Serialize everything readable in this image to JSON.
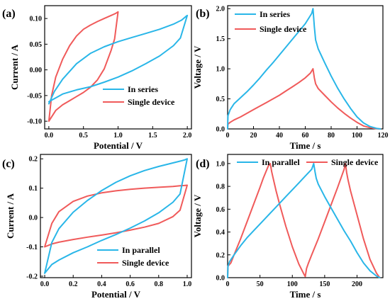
{
  "colors": {
    "series_a": "#29b6e8",
    "series_b": "#f05a5a"
  },
  "chart_data": [
    {
      "panel_label": "(a)",
      "type": "line",
      "xlabel": "Potential / V",
      "ylabel": "Current / A",
      "xlim": [
        -0.06,
        2.06
      ],
      "ylim": [
        -0.115,
        0.125
      ],
      "xticks": [
        0.0,
        0.5,
        1.0,
        1.5,
        2.0
      ],
      "xtick_labels": [
        "0.0",
        "0.5",
        "1.0",
        "1.5",
        "2.0"
      ],
      "yticks": [
        -0.1,
        -0.05,
        0.0,
        0.05,
        0.1
      ],
      "ytick_labels": [
        "-0.10",
        "-0.05",
        "0.00",
        "0.05",
        "0.10"
      ],
      "legend": "bottom-right",
      "series": [
        {
          "name": "In series",
          "color": "series_a",
          "x": [
            0.0,
            0.2,
            0.4,
            0.6,
            0.8,
            1.0,
            1.2,
            1.4,
            1.6,
            1.8,
            1.9,
            2.0,
            1.98,
            1.92,
            1.8,
            1.6,
            1.4,
            1.2,
            1.0,
            0.8,
            0.6,
            0.4,
            0.2,
            0.08,
            0.0
          ],
          "y": [
            -0.062,
            -0.047,
            -0.039,
            -0.033,
            -0.024,
            -0.014,
            -0.002,
            0.012,
            0.027,
            0.047,
            0.062,
            0.106,
            0.104,
            0.097,
            0.089,
            0.079,
            0.071,
            0.063,
            0.055,
            0.045,
            0.032,
            0.012,
            -0.018,
            -0.042,
            -0.066
          ]
        },
        {
          "name": "Single device",
          "color": "series_b",
          "x": [
            0.0,
            0.1,
            0.2,
            0.3,
            0.4,
            0.5,
            0.6,
            0.7,
            0.8,
            0.9,
            0.95,
            1.0,
            0.98,
            0.95,
            0.9,
            0.8,
            0.7,
            0.6,
            0.5,
            0.4,
            0.3,
            0.2,
            0.1,
            0.04,
            0.0
          ],
          "y": [
            -0.1,
            -0.079,
            -0.068,
            -0.06,
            -0.052,
            -0.044,
            -0.034,
            -0.02,
            0.002,
            0.038,
            0.06,
            0.113,
            0.111,
            0.109,
            0.106,
            0.1,
            0.094,
            0.087,
            0.079,
            0.066,
            0.047,
            0.021,
            -0.014,
            -0.05,
            -0.1
          ]
        }
      ]
    },
    {
      "panel_label": "(b)",
      "type": "line",
      "xlabel": "Time / s",
      "ylabel": "Voltage / V",
      "xlim": [
        0,
        120
      ],
      "ylim": [
        0,
        2.05
      ],
      "xticks": [
        0,
        20,
        40,
        60,
        80,
        100,
        120
      ],
      "xtick_labels": [
        "0",
        "20",
        "40",
        "60",
        "80",
        "100",
        "120"
      ],
      "yticks": [
        0.0,
        0.5,
        1.0,
        1.5,
        2.0
      ],
      "ytick_labels": [
        "0.0",
        "0.5",
        "1.0",
        "1.5",
        "2.0"
      ],
      "legend": "top-left",
      "series": [
        {
          "name": "In series",
          "color": "series_a",
          "x": [
            0,
            0.3,
            2,
            5,
            10,
            15,
            20,
            25,
            30,
            35,
            40,
            45,
            50,
            55,
            60,
            65,
            66,
            67,
            68,
            70,
            75,
            80,
            85,
            90,
            95,
            100,
            105,
            110,
            115,
            118
          ],
          "y": [
            0,
            0.22,
            0.32,
            0.42,
            0.52,
            0.62,
            0.73,
            0.85,
            0.98,
            1.1,
            1.23,
            1.36,
            1.49,
            1.62,
            1.75,
            1.92,
            2.0,
            1.7,
            1.48,
            1.33,
            1.1,
            0.88,
            0.68,
            0.5,
            0.34,
            0.2,
            0.1,
            0.04,
            0.01,
            0.0
          ]
        },
        {
          "name": "Single device",
          "color": "series_b",
          "x": [
            0,
            0.3,
            2,
            5,
            10,
            15,
            20,
            25,
            30,
            35,
            40,
            45,
            50,
            55,
            60,
            64,
            66,
            67,
            68,
            70,
            75,
            80,
            85,
            90,
            95,
            100,
            105,
            110,
            115,
            118
          ],
          "y": [
            0,
            0.08,
            0.11,
            0.15,
            0.2,
            0.26,
            0.32,
            0.38,
            0.44,
            0.5,
            0.56,
            0.63,
            0.7,
            0.77,
            0.85,
            0.93,
            1.0,
            0.85,
            0.75,
            0.67,
            0.56,
            0.45,
            0.35,
            0.26,
            0.18,
            0.11,
            0.05,
            0.02,
            0.005,
            0.0
          ]
        }
      ]
    },
    {
      "panel_label": "(c)",
      "type": "line",
      "xlabel": "Potential / V",
      "ylabel": "Current / A",
      "xlim": [
        -0.03,
        1.03
      ],
      "ylim": [
        -0.205,
        0.215
      ],
      "xticks": [
        0.0,
        0.2,
        0.4,
        0.6,
        0.8,
        1.0
      ],
      "xtick_labels": [
        "0.0",
        "0.2",
        "0.4",
        "0.6",
        "0.8",
        "1.0"
      ],
      "yticks": [
        -0.2,
        -0.1,
        0.0,
        0.1,
        0.2
      ],
      "ytick_labels": [
        "-0.2",
        "-0.1",
        "0.0",
        "0.1",
        "0.2"
      ],
      "legend": "bottom-right",
      "series": [
        {
          "name": "In parallel",
          "color": "series_a",
          "x": [
            0.0,
            0.05,
            0.1,
            0.2,
            0.3,
            0.4,
            0.5,
            0.6,
            0.7,
            0.8,
            0.9,
            0.95,
            1.0,
            0.98,
            0.95,
            0.9,
            0.8,
            0.7,
            0.6,
            0.5,
            0.4,
            0.3,
            0.2,
            0.1,
            0.05,
            0.0
          ],
          "y": [
            -0.19,
            -0.16,
            -0.145,
            -0.12,
            -0.1,
            -0.078,
            -0.058,
            -0.036,
            -0.012,
            0.016,
            0.052,
            0.08,
            0.2,
            0.196,
            0.192,
            0.186,
            0.174,
            0.16,
            0.142,
            0.12,
            0.092,
            0.058,
            0.018,
            -0.038,
            -0.085,
            -0.19
          ]
        },
        {
          "name": "Single device",
          "color": "series_b",
          "x": [
            0.0,
            0.05,
            0.1,
            0.2,
            0.3,
            0.4,
            0.5,
            0.6,
            0.7,
            0.8,
            0.9,
            0.95,
            1.0,
            0.98,
            0.95,
            0.9,
            0.8,
            0.7,
            0.6,
            0.5,
            0.4,
            0.3,
            0.2,
            0.1,
            0.05,
            0.0
          ],
          "y": [
            -0.1,
            -0.09,
            -0.084,
            -0.075,
            -0.067,
            -0.06,
            -0.052,
            -0.043,
            -0.033,
            -0.02,
            0.003,
            0.025,
            0.11,
            0.109,
            0.108,
            0.106,
            0.103,
            0.1,
            0.096,
            0.091,
            0.084,
            0.073,
            0.055,
            0.02,
            -0.02,
            -0.1
          ]
        }
      ]
    },
    {
      "panel_label": "(d)",
      "type": "line",
      "xlabel": "Time / s",
      "ylabel": "Voltage / V",
      "xlim": [
        0,
        240
      ],
      "ylim": [
        0,
        1.08
      ],
      "xticks": [
        0,
        50,
        100,
        150,
        200
      ],
      "xtick_labels": [
        "0",
        "50",
        "100",
        "150",
        "200"
      ],
      "yticks": [
        0.0,
        0.2,
        0.4,
        0.6,
        0.8,
        1.0
      ],
      "ytick_labels": [
        "0.0",
        "0.2",
        "0.4",
        "0.6",
        "0.8",
        "1.0"
      ],
      "legend": "top",
      "series": [
        {
          "name": "In parallel",
          "color": "series_a",
          "x": [
            0,
            0.5,
            3,
            10,
            20,
            30,
            40,
            50,
            60,
            70,
            80,
            90,
            100,
            110,
            120,
            130,
            133,
            135,
            137,
            140,
            150,
            160,
            170,
            180,
            190,
            200,
            210,
            220,
            230,
            235
          ],
          "y": [
            0,
            0.1,
            0.14,
            0.2,
            0.28,
            0.35,
            0.41,
            0.47,
            0.53,
            0.59,
            0.65,
            0.71,
            0.77,
            0.83,
            0.89,
            0.95,
            1.0,
            0.93,
            0.87,
            0.82,
            0.71,
            0.61,
            0.51,
            0.41,
            0.32,
            0.22,
            0.13,
            0.06,
            0.015,
            0.0
          ]
        },
        {
          "name": "Single device",
          "color": "series_b",
          "x": [
            0,
            0.5,
            5,
            10,
            20,
            30,
            40,
            50,
            55,
            60,
            63,
            66,
            68,
            70,
            75,
            80,
            90,
            100,
            110,
            118,
            120,
            122,
            125,
            130,
            140,
            150,
            160,
            170,
            175,
            180,
            182,
            184,
            186,
            190,
            200,
            210,
            220,
            230,
            235
          ],
          "y": [
            0,
            0.1,
            0.13,
            0.2,
            0.34,
            0.49,
            0.64,
            0.79,
            0.87,
            0.94,
            0.98,
            1.0,
            0.93,
            0.88,
            0.76,
            0.65,
            0.45,
            0.27,
            0.12,
            0.03,
            0.01,
            0.08,
            0.13,
            0.2,
            0.34,
            0.49,
            0.64,
            0.79,
            0.87,
            0.95,
            1.0,
            0.92,
            0.86,
            0.76,
            0.55,
            0.34,
            0.16,
            0.04,
            0.0
          ]
        }
      ]
    }
  ]
}
